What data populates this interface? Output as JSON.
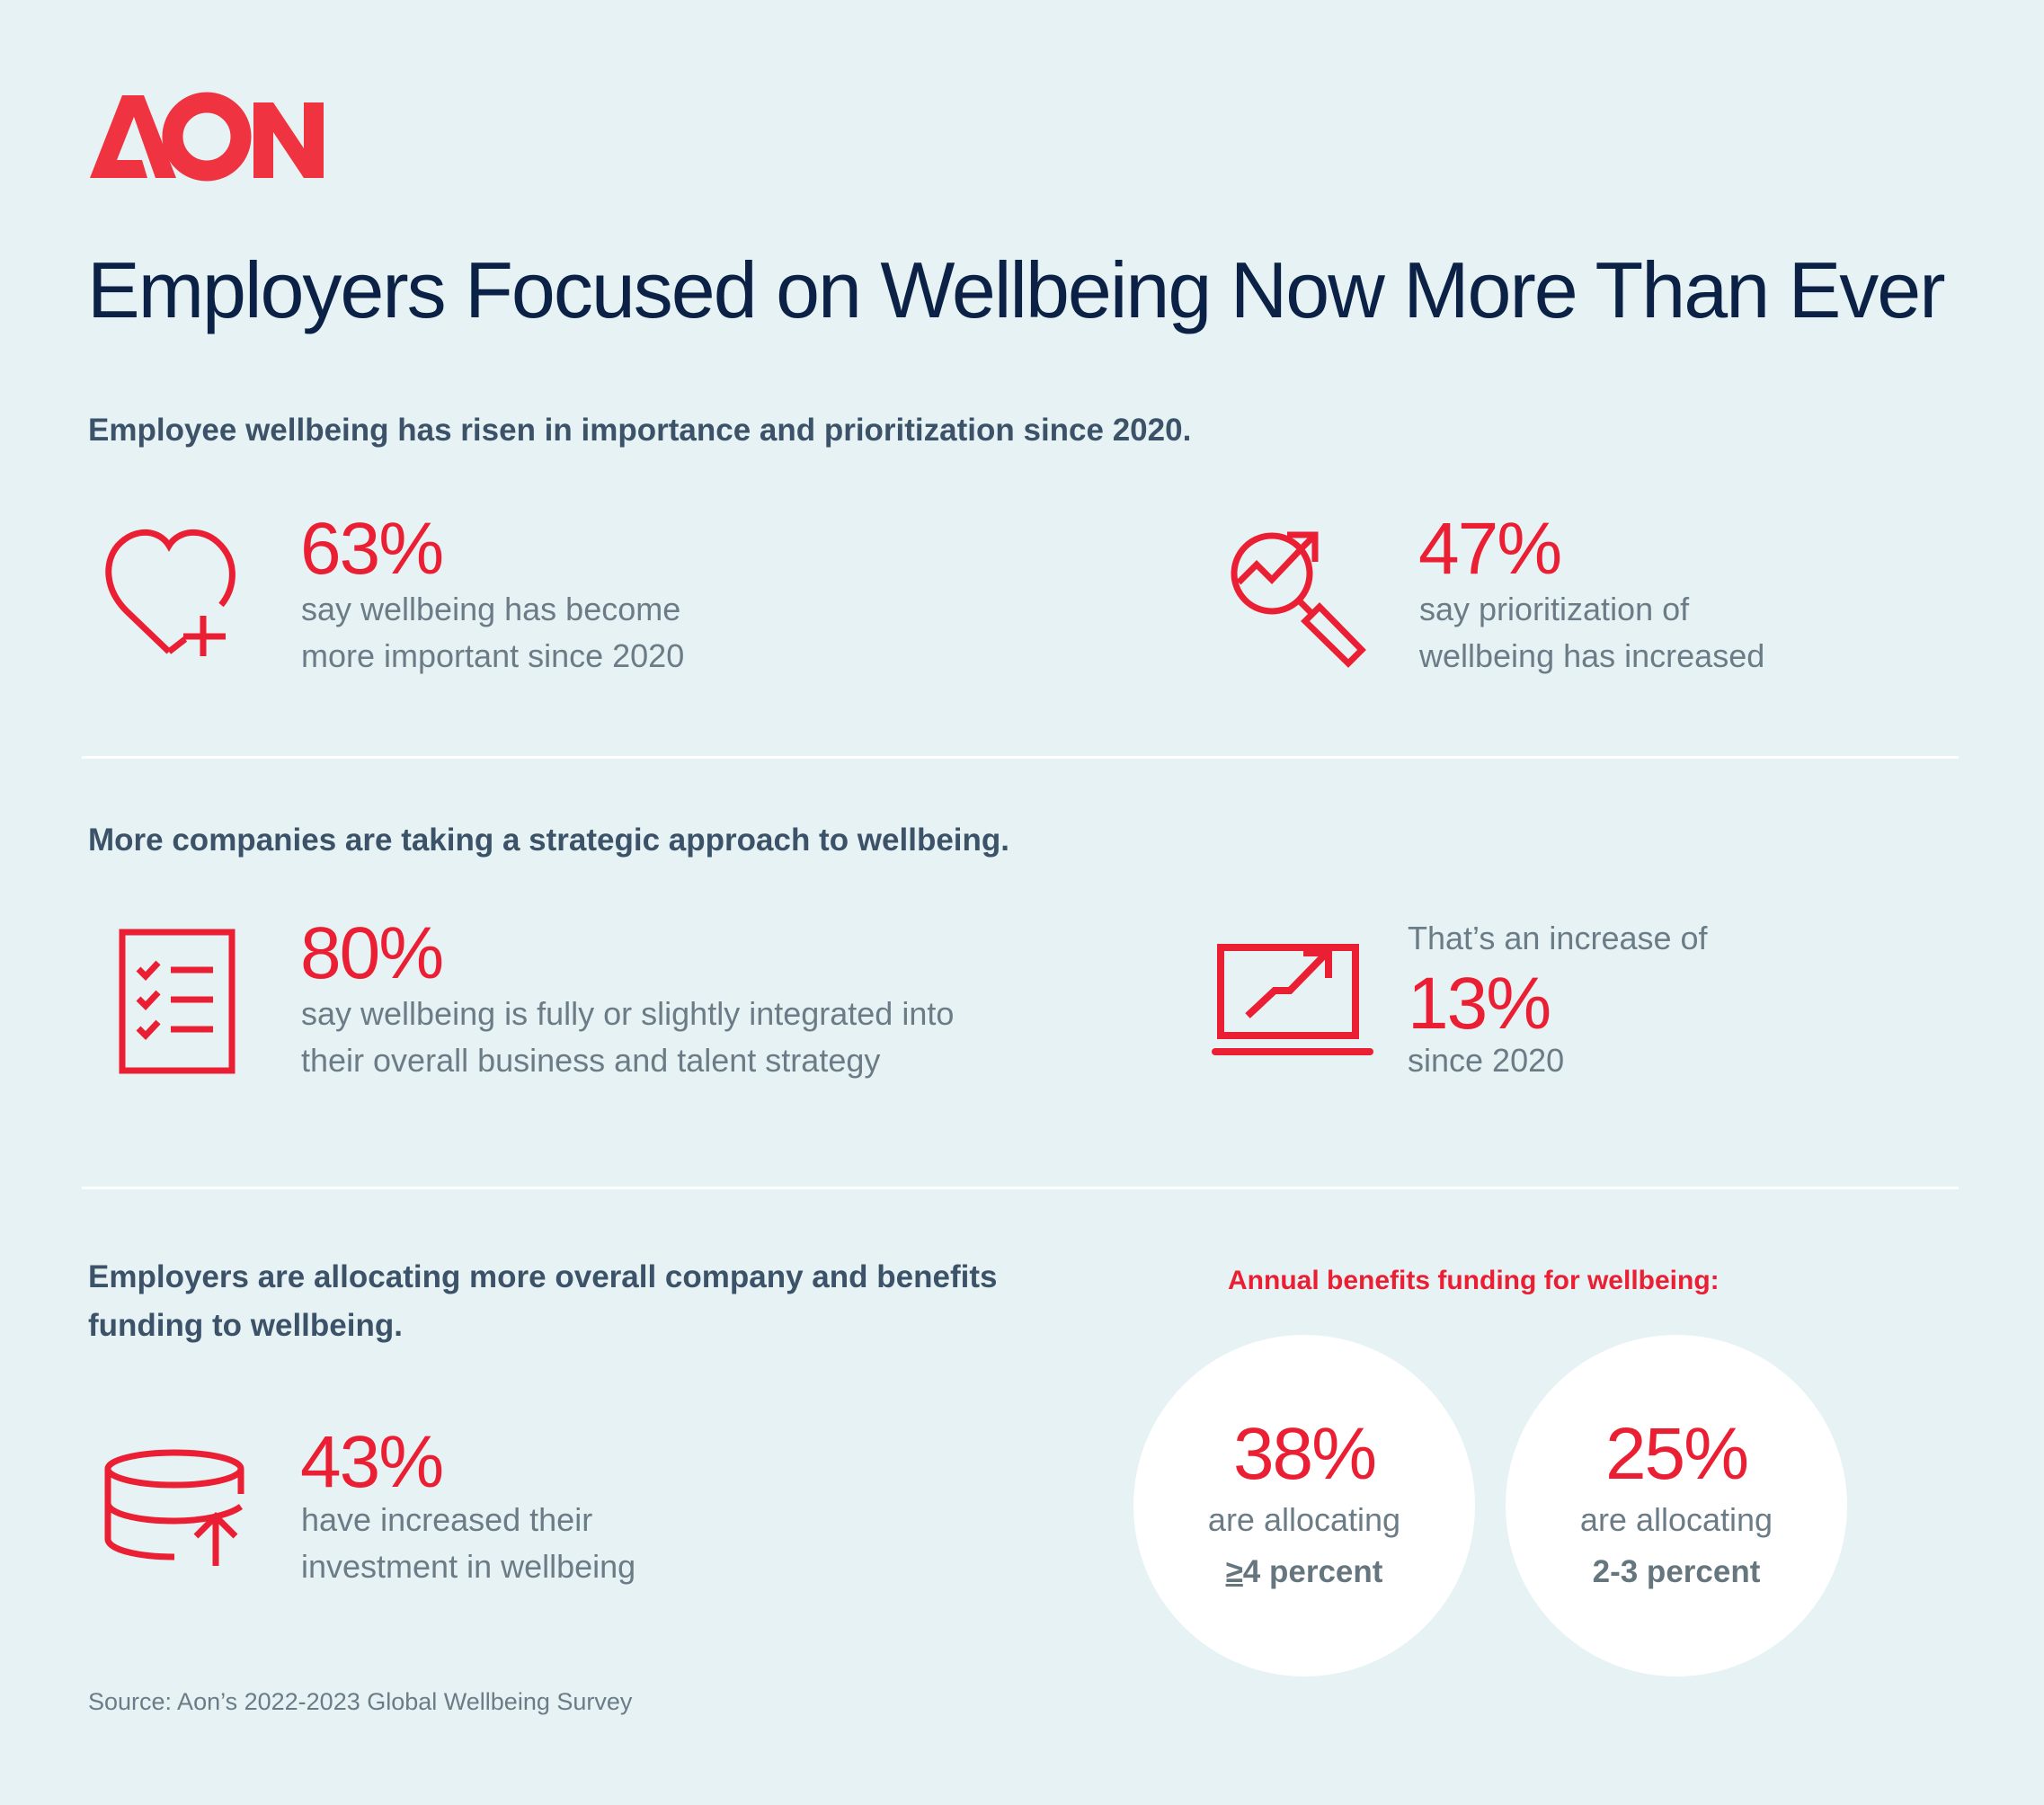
{
  "logo": {
    "text": "AON",
    "color": "#ef3340"
  },
  "title": "Employers Focused on Wellbeing Now More Than Ever",
  "sections": [
    {
      "heading": "Employee wellbeing has risen in importance and prioritization since 2020.",
      "stats": [
        {
          "icon": "heart-plus-icon",
          "value": "63%",
          "lines": [
            "say wellbeing has become",
            "more important since 2020"
          ]
        },
        {
          "icon": "magnifier-growth-icon",
          "value": "47%",
          "lines": [
            "say prioritization of",
            "wellbeing has increased"
          ]
        }
      ]
    },
    {
      "heading": "More companies are taking a strategic approach to wellbeing.",
      "stats": [
        {
          "icon": "checklist-icon",
          "value": "80%",
          "lines": [
            "say wellbeing is fully or slightly integrated into",
            "their overall business and talent strategy"
          ]
        },
        {
          "icon": "laptop-chart-icon",
          "pre": "That’s an increase of",
          "value": "13%",
          "lines": [
            "since 2020"
          ]
        }
      ]
    },
    {
      "heading_lines": [
        "Employers are allocating more overall company and benefits",
        "funding to wellbeing."
      ],
      "stats": [
        {
          "icon": "database-up-icon",
          "value": "43%",
          "lines": [
            "have increased their",
            "investment in wellbeing"
          ]
        }
      ],
      "funding": {
        "label": "Annual benefits funding for wellbeing:",
        "circles": [
          {
            "value": "38%",
            "line": "are allocating",
            "strong_symbol": "≥",
            "strong_rest": "4 percent"
          },
          {
            "value": "25%",
            "line": "are allocating",
            "strong": "2-3 percent"
          }
        ]
      }
    }
  ],
  "source": "Source: Aon’s 2022-2023 Global Wellbeing Survey",
  "colors": {
    "background": "#e6f2f4",
    "accent": "#eb1f33",
    "title": "#0b2145",
    "heading": "#3b5268",
    "body": "#6b7c87"
  }
}
